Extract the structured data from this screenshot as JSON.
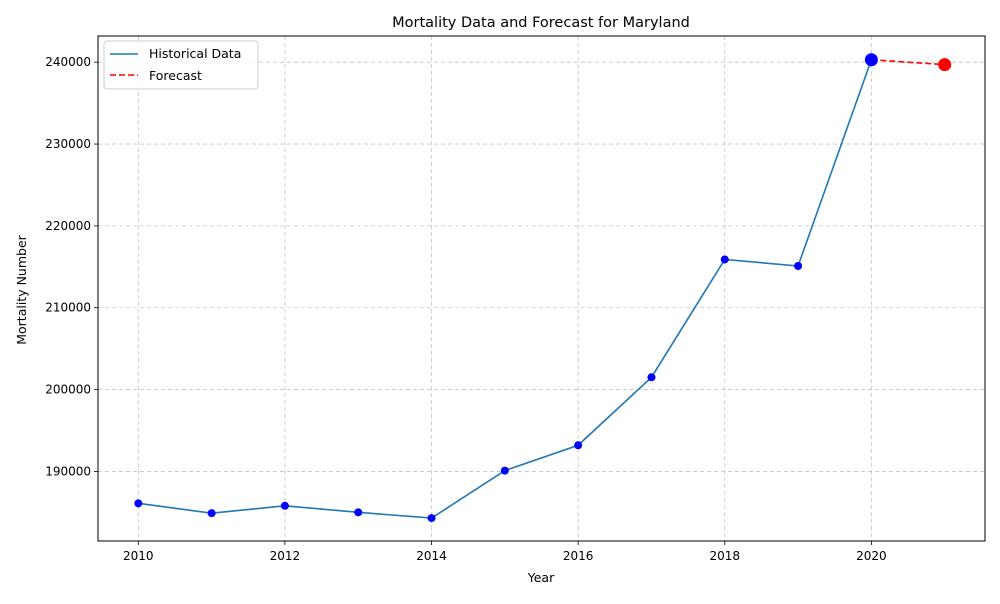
{
  "chart_data": {
    "type": "line",
    "title": "Mortality Data and Forecast for Maryland",
    "xlabel": "Year",
    "ylabel": "Mortality Number",
    "xlim": [
      2009.45,
      2021.55
    ],
    "ylim": [
      181500,
      243200
    ],
    "x_ticks": [
      2010,
      2012,
      2014,
      2016,
      2018,
      2020
    ],
    "y_ticks": [
      190000,
      200000,
      210000,
      220000,
      230000,
      240000
    ],
    "grid": true,
    "legend_position": "top-left",
    "series": [
      {
        "name": "Historical Data",
        "style": "solid",
        "color": "#1f77b4",
        "marker_color": "#0000ff",
        "x": [
          2010,
          2011,
          2012,
          2013,
          2014,
          2015,
          2016,
          2017,
          2018,
          2019,
          2020
        ],
        "y": [
          186100,
          184900,
          185800,
          185000,
          184300,
          190100,
          193200,
          201500,
          215900,
          215100,
          240300
        ]
      },
      {
        "name": "Forecast",
        "style": "dashed",
        "color": "#ff0000",
        "marker_color": "#ff0000",
        "x": [
          2020,
          2021
        ],
        "y": [
          240300,
          239700
        ]
      }
    ],
    "highlighted_points": [
      {
        "x": 2020,
        "y": 240300,
        "color": "#0000ff"
      },
      {
        "x": 2021,
        "y": 239700,
        "color": "#ff0000"
      }
    ]
  }
}
